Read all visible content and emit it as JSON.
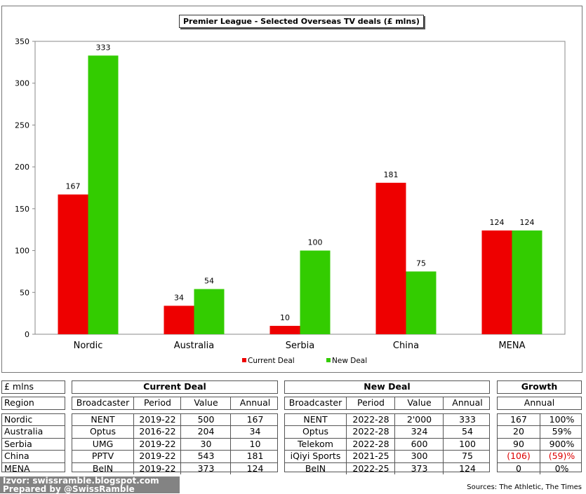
{
  "chart_data": {
    "type": "bar",
    "title": "Premier League - Selected Overseas TV deals (£ mlns)",
    "categories": [
      "Nordic",
      "Australia",
      "Serbia",
      "China",
      "MENA"
    ],
    "series": [
      {
        "name": "Current Deal",
        "values": [
          167,
          34,
          10,
          181,
          124
        ],
        "color": "#ee0000"
      },
      {
        "name": "New Deal",
        "values": [
          333,
          54,
          100,
          75,
          124
        ],
        "color": "#33cc00"
      }
    ],
    "ylim": [
      0,
      350
    ],
    "yticks": [
      0,
      50,
      100,
      150,
      200,
      250,
      300,
      350
    ],
    "legend": "bottom",
    "grid": false
  },
  "table": {
    "unit": "£ mlns",
    "current_title": "Current Deal",
    "new_title": "New Deal",
    "growth_title": "Growth",
    "region_header": "Region",
    "deal_headers": [
      "Broadcaster",
      "Period",
      "Value",
      "Annual"
    ],
    "growth_header": "Annual",
    "rows": [
      {
        "region": "Nordic",
        "cur": [
          "NENT",
          "2019-22",
          "500",
          "167"
        ],
        "new": [
          "NENT",
          "2022-28",
          "2'000",
          "333"
        ],
        "growth": [
          "167",
          "100%"
        ],
        "neg": false
      },
      {
        "region": "Australia",
        "cur": [
          "Optus",
          "2016-22",
          "204",
          "34"
        ],
        "new": [
          "Optus",
          "2022-28",
          "324",
          "54"
        ],
        "growth": [
          "20",
          "59%"
        ],
        "neg": false
      },
      {
        "region": "Serbia",
        "cur": [
          "UMG",
          "2019-22",
          "30",
          "10"
        ],
        "new": [
          "Telekom",
          "2022-28",
          "600",
          "100"
        ],
        "growth": [
          "90",
          "900%"
        ],
        "neg": false
      },
      {
        "region": "China",
        "cur": [
          "PPTV",
          "2019-22",
          "543",
          "181"
        ],
        "new": [
          "iQiyi Sports",
          "2021-25",
          "300",
          "75"
        ],
        "growth": [
          "(106)",
          "(59)%"
        ],
        "neg": true
      },
      {
        "region": "MENA",
        "cur": [
          "BeIN",
          "2019-22",
          "373",
          "124"
        ],
        "new": [
          "BeIN",
          "2022-25",
          "373",
          "124"
        ],
        "growth": [
          "0",
          "0%"
        ],
        "neg": false
      }
    ]
  },
  "watermark": {
    "line1": "Izvor: swissramble.blogspot.com",
    "line2": "Prepared by @SwissRamble"
  },
  "sources": "Sources: The Athletic, The Times"
}
